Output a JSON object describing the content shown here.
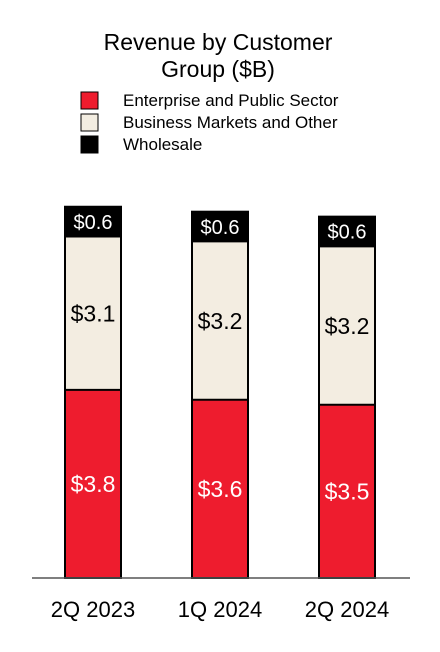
{
  "chart_data": {
    "type": "bar",
    "stacked": true,
    "title": "Revenue by Customer Group ($B)",
    "title_lines": [
      "Revenue by Customer",
      "Group ($B)"
    ],
    "categories": [
      "2Q 2023",
      "1Q 2024",
      "2Q 2024"
    ],
    "series": [
      {
        "name": "Enterprise and Public Sector",
        "values": [
          3.8,
          3.6,
          3.5
        ],
        "labels": [
          "$3.8",
          "$3.6",
          "$3.5"
        ],
        "color": "#ee1c2e",
        "label_color": "#ffffff"
      },
      {
        "name": "Business Markets and Other",
        "values": [
          3.1,
          3.2,
          3.2
        ],
        "labels": [
          "$3.1",
          "$3.2",
          "$3.2"
        ],
        "color": "#f3ede1",
        "label_color": "#000000"
      },
      {
        "name": "Wholesale",
        "values": [
          0.6,
          0.6,
          0.6
        ],
        "labels": [
          "$0.6",
          "$0.6",
          "$0.6"
        ],
        "color": "#000000",
        "label_color": "#ffffff"
      }
    ],
    "legend": "top",
    "grid": false,
    "ylim": [
      0,
      8
    ]
  }
}
